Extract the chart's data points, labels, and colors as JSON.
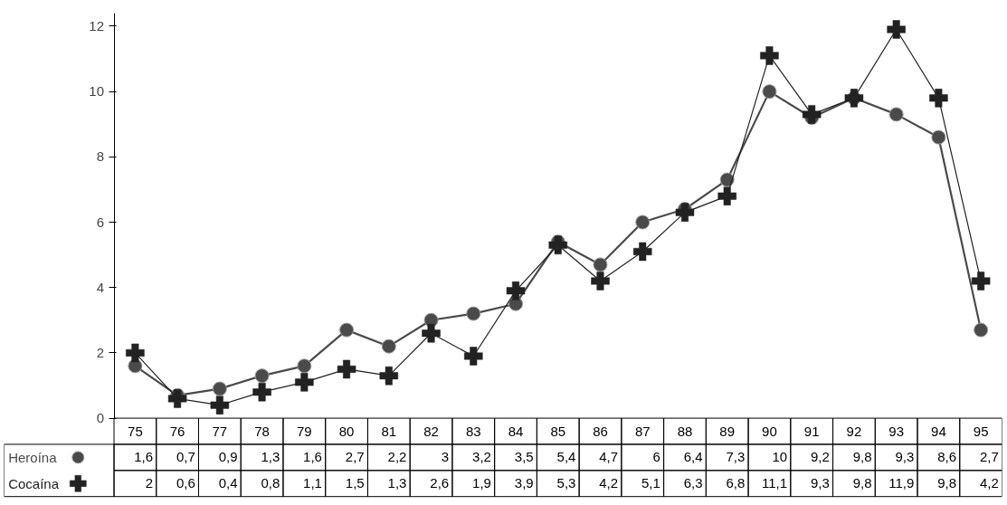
{
  "chart_data": {
    "type": "line",
    "categories": [
      "75",
      "76",
      "77",
      "78",
      "79",
      "80",
      "81",
      "82",
      "83",
      "84",
      "85",
      "86",
      "87",
      "88",
      "89",
      "90",
      "91",
      "92",
      "93",
      "94",
      "95"
    ],
    "series": [
      {
        "name": "Heroína",
        "color": "#4a4a4a",
        "marker": "circle",
        "values": [
          1.6,
          0.7,
          0.9,
          1.3,
          1.6,
          2.7,
          2.2,
          3,
          3.2,
          3.5,
          5.4,
          4.7,
          6,
          6.4,
          7.3,
          10,
          9.2,
          9.8,
          9.3,
          8.6,
          2.7
        ],
        "value_labels": [
          "1,6",
          "0,7",
          "0,9",
          "1,3",
          "1,6",
          "2,7",
          "2,2",
          "3",
          "3,2",
          "3,5",
          "5,4",
          "4,7",
          "6",
          "6,4",
          "7,3",
          "10",
          "9,2",
          "9,8",
          "9,3",
          "8,6",
          "2,7"
        ]
      },
      {
        "name": "Cocaína",
        "color": "#222222",
        "marker": "cross",
        "values": [
          2,
          0.6,
          0.4,
          0.8,
          1.1,
          1.5,
          1.3,
          2.6,
          1.9,
          3.9,
          5.3,
          4.2,
          5.1,
          6.3,
          6.8,
          11.1,
          9.3,
          9.8,
          11.9,
          9.8,
          4.2
        ],
        "value_labels": [
          "2",
          "0,6",
          "0,4",
          "0,8",
          "1,1",
          "1,5",
          "1,3",
          "2,6",
          "1,9",
          "3,9",
          "5,3",
          "4,2",
          "5,1",
          "6,3",
          "6,8",
          "11,1",
          "9,3",
          "9,8",
          "11,9",
          "9,8",
          "4,2"
        ]
      }
    ],
    "ylim": [
      0,
      12.4
    ],
    "yticks": [
      0,
      2,
      4,
      6,
      8,
      10,
      12
    ],
    "grid": false,
    "legend": "bottom left",
    "tick_labels": "y",
    "line_style": "solid"
  }
}
